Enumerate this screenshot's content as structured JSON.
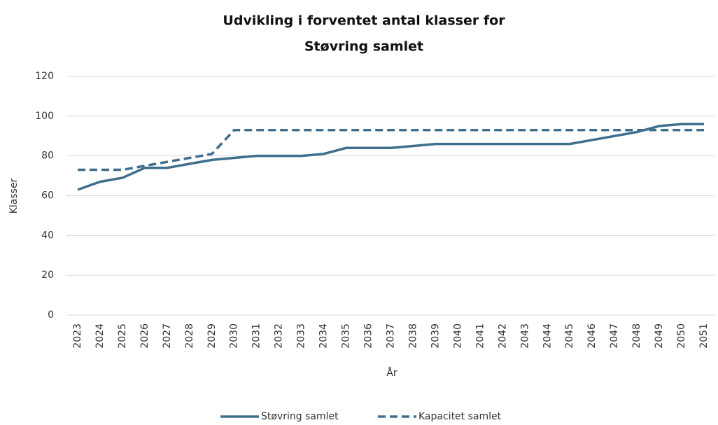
{
  "chart_data": {
    "type": "line",
    "title": [
      "Udvikling i forventet antal klasser for",
      "Støvring samlet"
    ],
    "x_label": "År",
    "y_label": "Klasser",
    "categories": [
      "2023",
      "2024",
      "2025",
      "2026",
      "2027",
      "2028",
      "2029",
      "2030",
      "2031",
      "2032",
      "2033",
      "2034",
      "2035",
      "2036",
      "2037",
      "2038",
      "2039",
      "2040",
      "2041",
      "2042",
      "2043",
      "2044",
      "2045",
      "2046",
      "2047",
      "2048",
      "2049",
      "2050",
      "2051"
    ],
    "series": [
      {
        "name": "Støvring samlet",
        "color": "#3f6f8d",
        "dash": false,
        "values": [
          63,
          67,
          69,
          74,
          74,
          76,
          78,
          79,
          80,
          80,
          80,
          81,
          84,
          84,
          84,
          85,
          86,
          86,
          86,
          86,
          86,
          86,
          86,
          88,
          90,
          92,
          95,
          96,
          96
        ]
      },
      {
        "name": "Kapacitet samlet",
        "color": "#3f6f8d",
        "dash": true,
        "values": [
          73,
          73,
          73,
          75,
          77,
          79,
          81,
          93,
          93,
          93,
          93,
          93,
          93,
          93,
          93,
          93,
          93,
          93,
          93,
          93,
          93,
          93,
          93,
          93,
          93,
          93,
          93,
          93,
          93
        ]
      }
    ],
    "ylim": [
      0,
      120
    ],
    "yticks": [
      0,
      20,
      40,
      60,
      80,
      100,
      120
    ],
    "grid": true,
    "legend": "bottom"
  }
}
